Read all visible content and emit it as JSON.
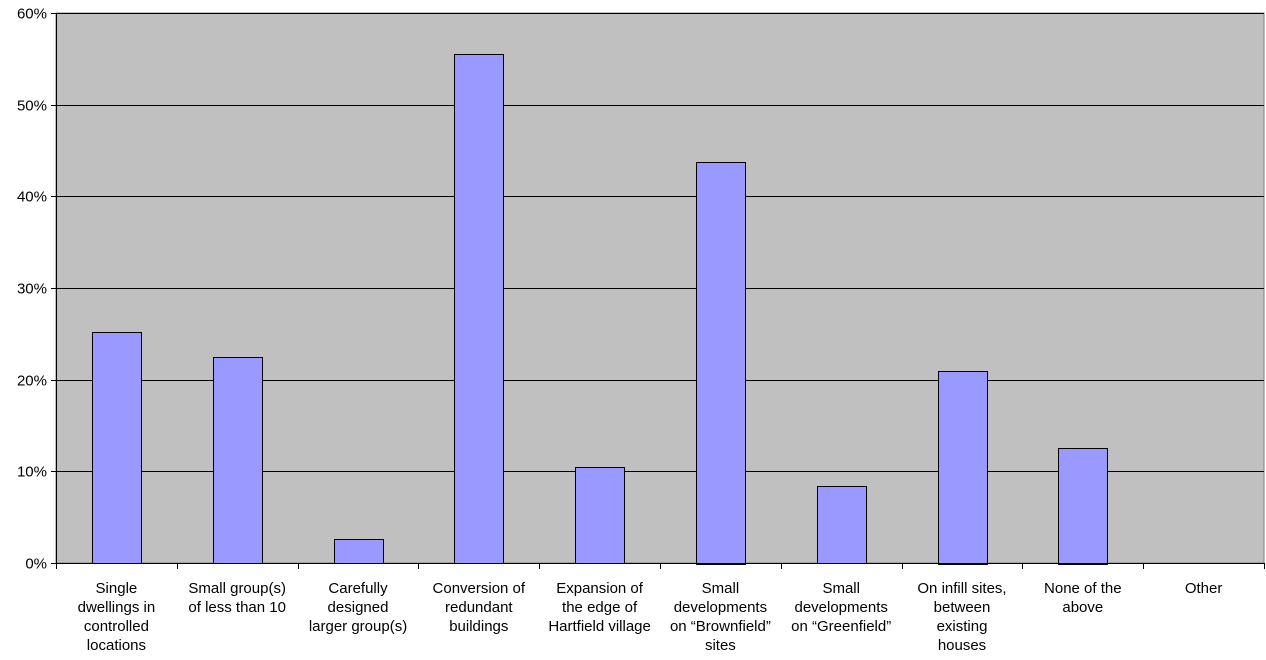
{
  "chart_data": {
    "type": "bar",
    "categories": [
      [
        "Single",
        "dwellings in",
        "controlled",
        "locations"
      ],
      [
        "Small group(s)",
        "of less than 10"
      ],
      [
        "Carefully",
        "designed",
        "larger group(s)"
      ],
      [
        "Conversion of",
        "redundant",
        "buildings"
      ],
      [
        "Expansion of",
        "the edge of",
        "Hartfield village"
      ],
      [
        "Small",
        "developments",
        "on “Brownfield”",
        "sites"
      ],
      [
        "Small",
        "developments",
        "on “Greenfield”"
      ],
      [
        "On infill sites,",
        "between",
        "existing",
        "houses"
      ],
      [
        "None of the",
        "above"
      ],
      [
        "Other"
      ]
    ],
    "values": [
      25.2,
      22.5,
      2.6,
      55.5,
      10.5,
      43.8,
      8.4,
      21.0,
      12.6,
      0
    ],
    "ylim": [
      0,
      60
    ],
    "yticks": [
      0,
      10,
      20,
      30,
      40,
      50,
      60
    ],
    "ytick_labels": [
      "0%",
      "10%",
      "20%",
      "30%",
      "40%",
      "50%",
      "60%"
    ],
    "grid": true,
    "colors": {
      "plot_background": "#c0c0c0",
      "bar_fill": "#9999ff",
      "bar_stroke": "#000000",
      "gridline": "#000000"
    }
  }
}
